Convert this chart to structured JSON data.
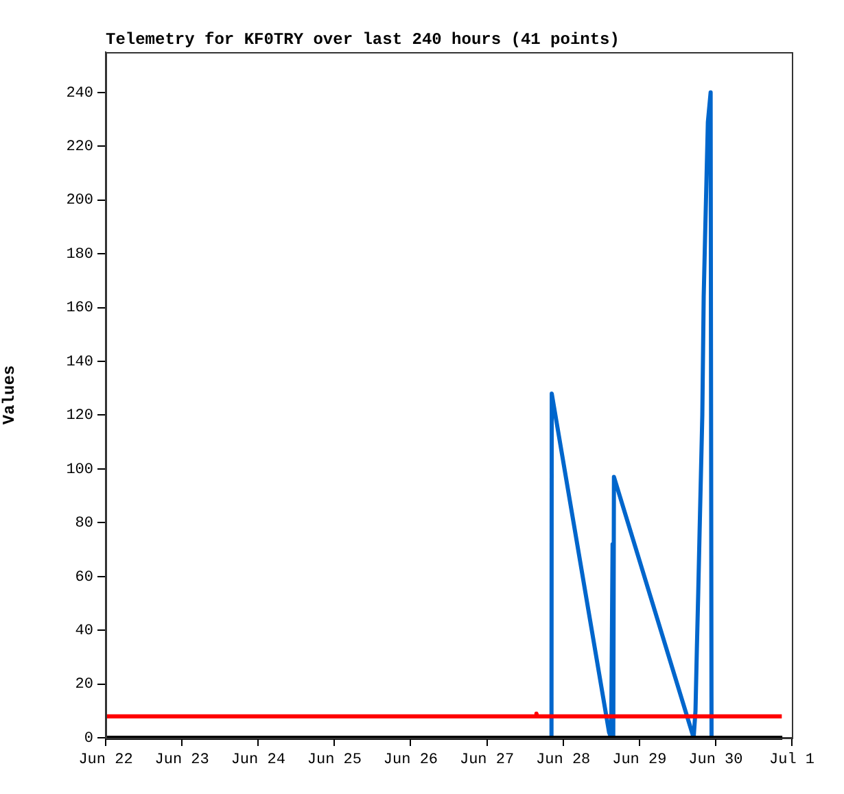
{
  "chart_data": {
    "type": "line",
    "title": "Telemetry for KF0TRY over last 240 hours (41 points)",
    "ylabel": "Values",
    "xlim": [
      "--06-22",
      "--07-01"
    ],
    "xticks": [
      {
        "value": "--06-22",
        "label": "Jun 22"
      },
      {
        "value": "--06-23",
        "label": "Jun 23"
      },
      {
        "value": "--06-24",
        "label": "Jun 24"
      },
      {
        "value": "--06-25",
        "label": "Jun 25"
      },
      {
        "value": "--06-26",
        "label": "Jun 26"
      },
      {
        "value": "--06-27",
        "label": "Jun 27"
      },
      {
        "value": "--06-28",
        "label": "Jun 28"
      },
      {
        "value": "--06-29",
        "label": "Jun 29"
      },
      {
        "value": "--06-30",
        "label": "Jun 30"
      },
      {
        "value": "--07-01",
        "label": "Jul 1"
      }
    ],
    "ylim": [
      0,
      255
    ],
    "yticks": [
      0,
      20,
      40,
      60,
      80,
      100,
      120,
      140,
      160,
      180,
      200,
      220,
      240
    ],
    "marker": "none",
    "line_style": "solid",
    "legend": false,
    "grid": false,
    "series": [
      {
        "color": "#000000",
        "x": [
          "--06-22T00:00",
          "--06-30T21:00"
        ],
        "values": [
          0,
          0
        ]
      },
      {
        "color": "#ff0000",
        "x": [
          "--06-22T00:00",
          "--06-27T15:20",
          "--06-27T15:36",
          "--06-27T15:50",
          "--06-30T20:50"
        ],
        "values": [
          8,
          8,
          9,
          8,
          8
        ]
      },
      {
        "color": "#0066cc",
        "x": [
          "--06-27T20:20",
          "--06-27T20:25",
          "--06-28T14:28",
          "--06-28T15:07",
          "--06-28T15:34",
          "--06-28T15:47",
          "--06-28T16:00",
          "--06-29T17:05",
          "--06-29T17:40",
          "--06-29T18:06",
          "--06-29T18:32",
          "--06-29T18:58",
          "--06-29T19:23",
          "--06-29T19:49",
          "--06-29T20:15",
          "--06-29T20:41",
          "--06-29T21:07",
          "--06-29T21:34",
          "--06-29T22:26",
          "--06-29T22:43"
        ],
        "values": [
          0,
          128,
          2,
          0,
          72,
          0,
          97,
          0,
          10,
          33,
          54,
          77,
          98,
          120,
          164,
          186,
          207,
          229,
          240,
          0
        ]
      }
    ]
  }
}
